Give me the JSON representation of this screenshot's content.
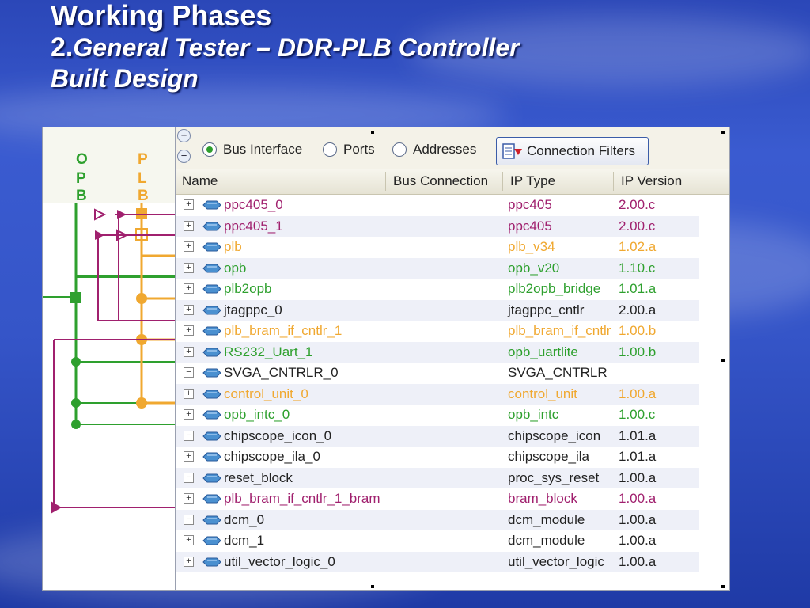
{
  "slide": {
    "title_line1": "Working Phases",
    "title_num": "2.",
    "title_line2": "General Tester – DDR-PLB Controller",
    "title_line3": "Built  Design"
  },
  "schematic": {
    "bus_opb": [
      "O",
      "P",
      "B"
    ],
    "bus_plb": [
      "P",
      "L",
      "B"
    ],
    "colors": {
      "opb": "#2ea02e",
      "plb": "#f0a830",
      "magenta": "#a0206e"
    }
  },
  "toolbar": {
    "radios": [
      {
        "label": "Bus Interface",
        "selected": true
      },
      {
        "label": "Ports",
        "selected": false
      },
      {
        "label": "Addresses",
        "selected": false
      }
    ],
    "connection_filters_label": "Connection Filters"
  },
  "table": {
    "columns": [
      "Name",
      "Bus Connection",
      "IP Type",
      "IP Version"
    ],
    "rows": [
      {
        "expander": "+",
        "name": "ppc405_0",
        "ip_type": "ppc405",
        "ip_version": "2.00.c",
        "color": "#a0206e"
      },
      {
        "expander": "+",
        "name": "ppc405_1",
        "ip_type": "ppc405",
        "ip_version": "2.00.c",
        "color": "#a0206e"
      },
      {
        "expander": "+",
        "name": "plb",
        "ip_type": "plb_v34",
        "ip_version": "1.02.a",
        "color": "#f0a830"
      },
      {
        "expander": "+",
        "name": "opb",
        "ip_type": "opb_v20",
        "ip_version": "1.10.c",
        "color": "#2ea02e"
      },
      {
        "expander": "+",
        "name": "plb2opb",
        "ip_type": "plb2opb_bridge",
        "ip_version": "1.01.a",
        "color": "#2ea02e"
      },
      {
        "expander": "+",
        "name": "jtagppc_0",
        "ip_type": "jtagppc_cntlr",
        "ip_version": "2.00.a",
        "color": "#222222"
      },
      {
        "expander": "+",
        "name": "plb_bram_if_cntlr_1",
        "ip_type": "plb_bram_if_cntlr",
        "ip_version": "1.00.b",
        "color": "#f0a830"
      },
      {
        "expander": "+",
        "name": "RS232_Uart_1",
        "ip_type": "opb_uartlite",
        "ip_version": "1.00.b",
        "color": "#2ea02e"
      },
      {
        "expander": "−",
        "name": "SVGA_CNTRLR_0",
        "ip_type": "SVGA_CNTRLR",
        "ip_version": "",
        "color": "#222222"
      },
      {
        "expander": "+",
        "name": "control_unit_0",
        "ip_type": "control_unit",
        "ip_version": "1.00.a",
        "color": "#f0a830"
      },
      {
        "expander": "+",
        "name": "opb_intc_0",
        "ip_type": "opb_intc",
        "ip_version": "1.00.c",
        "color": "#2ea02e"
      },
      {
        "expander": "−",
        "name": "chipscope_icon_0",
        "ip_type": "chipscope_icon",
        "ip_version": "1.01.a",
        "color": "#222222"
      },
      {
        "expander": "+",
        "name": "chipscope_ila_0",
        "ip_type": "chipscope_ila",
        "ip_version": "1.01.a",
        "color": "#222222"
      },
      {
        "expander": "−",
        "name": "reset_block",
        "ip_type": "proc_sys_reset",
        "ip_version": "1.00.a",
        "color": "#222222"
      },
      {
        "expander": "+",
        "name": "plb_bram_if_cntlr_1_bram",
        "ip_type": "bram_block",
        "ip_version": "1.00.a",
        "color": "#a0206e"
      },
      {
        "expander": "−",
        "name": "dcm_0",
        "ip_type": "dcm_module",
        "ip_version": "1.00.a",
        "color": "#222222"
      },
      {
        "expander": "+",
        "name": "dcm_1",
        "ip_type": "dcm_module",
        "ip_version": "1.00.a",
        "color": "#222222"
      },
      {
        "expander": "+",
        "name": "util_vector_logic_0",
        "ip_type": "util_vector_logic",
        "ip_version": "1.00.a",
        "color": "#222222"
      }
    ]
  }
}
